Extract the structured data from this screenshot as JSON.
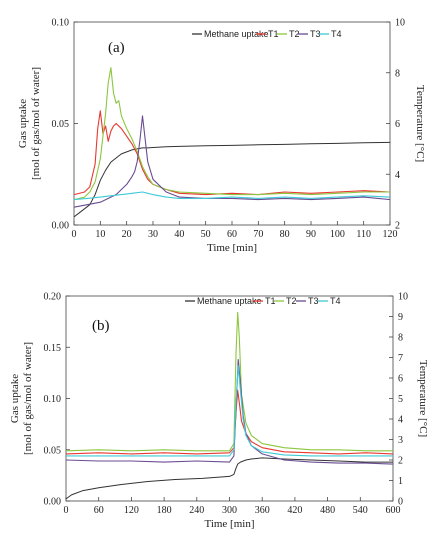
{
  "chart_data": [
    {
      "type": "line",
      "panel_label": "(a)",
      "xlabel": "Time  [min]",
      "ylabel_left_line1": "Gas uptake",
      "ylabel_left_line2": "[mol of gas/mol  of water]",
      "ylabel_right": "Temperature [°C]",
      "xlim": [
        0,
        120
      ],
      "xticks": [
        "0",
        "10",
        "20",
        "30",
        "40",
        "50",
        "60",
        "70",
        "80",
        "90",
        "100",
        "110",
        "120"
      ],
      "ylim_left": [
        0,
        0.1
      ],
      "yticks_left": [
        "0.00",
        "0.05",
        "0.10"
      ],
      "ylim_right": [
        2,
        10
      ],
      "yticks_right": [
        "2",
        "4",
        "6",
        "8",
        "10"
      ],
      "grid": false,
      "legend_position": "top-right",
      "series": [
        {
          "name": "Methane uptake",
          "axis": "left",
          "color": "#333333",
          "x": [
            0,
            2,
            4,
            6,
            8,
            10,
            12,
            14,
            16,
            18,
            20,
            22,
            24,
            26,
            28,
            30,
            35,
            40,
            50,
            60,
            70,
            80,
            90,
            100,
            110,
            120
          ],
          "y": [
            0.004,
            0.006,
            0.008,
            0.01,
            0.015,
            0.022,
            0.027,
            0.031,
            0.033,
            0.035,
            0.036,
            0.037,
            0.0375,
            0.038,
            0.038,
            0.0382,
            0.0385,
            0.0387,
            0.039,
            0.0392,
            0.0395,
            0.0397,
            0.04,
            0.0402,
            0.0405,
            0.0407
          ]
        },
        {
          "name": "T1",
          "axis": "right",
          "color": "#e8382f",
          "x": [
            0,
            4,
            6,
            8,
            9,
            10,
            11,
            12,
            13,
            14,
            15,
            16,
            18,
            20,
            22,
            24,
            26,
            28,
            30,
            35,
            40,
            50,
            60,
            70,
            80,
            90,
            100,
            110,
            120
          ],
          "y": [
            3.2,
            3.3,
            3.5,
            4.4,
            5.8,
            6.5,
            5.6,
            5.9,
            5.3,
            5.7,
            5.9,
            6.0,
            5.8,
            5.5,
            5.2,
            4.8,
            4.2,
            3.8,
            3.6,
            3.4,
            3.25,
            3.2,
            3.25,
            3.2,
            3.3,
            3.25,
            3.3,
            3.35,
            3.3
          ]
        },
        {
          "name": "T2",
          "axis": "right",
          "color": "#8cc63f",
          "x": [
            0,
            4,
            6,
            8,
            10,
            12,
            13,
            14,
            15,
            16,
            17,
            18,
            20,
            22,
            24,
            26,
            28,
            30,
            35,
            40,
            50,
            60,
            70,
            80,
            90,
            100,
            110,
            120
          ],
          "y": [
            3.0,
            3.1,
            3.3,
            3.7,
            4.6,
            6.4,
            7.6,
            8.2,
            7.2,
            6.8,
            6.9,
            6.3,
            5.8,
            5.4,
            4.9,
            4.3,
            3.9,
            3.6,
            3.4,
            3.3,
            3.25,
            3.2,
            3.2,
            3.25,
            3.2,
            3.25,
            3.3,
            3.3
          ]
        },
        {
          "name": "T3",
          "axis": "right",
          "color": "#6a4c93",
          "x": [
            0,
            5,
            10,
            14,
            16,
            18,
            20,
            22,
            23,
            24,
            25,
            26,
            27,
            28,
            30,
            35,
            40,
            50,
            60,
            70,
            80,
            90,
            100,
            110,
            120
          ],
          "y": [
            2.7,
            2.8,
            2.9,
            3.1,
            3.2,
            3.4,
            3.6,
            3.9,
            4.1,
            4.5,
            5.3,
            6.3,
            5.4,
            4.5,
            3.8,
            3.3,
            3.1,
            3.05,
            3.05,
            3.0,
            3.05,
            3.0,
            3.05,
            3.1,
            3.0
          ]
        },
        {
          "name": "T4",
          "axis": "right",
          "color": "#3ec9d6",
          "x": [
            0,
            5,
            10,
            14,
            18,
            22,
            26,
            28,
            30,
            35,
            40,
            50,
            60,
            70,
            80,
            90,
            100,
            110,
            120
          ],
          "y": [
            3.0,
            3.05,
            3.1,
            3.15,
            3.2,
            3.25,
            3.3,
            3.25,
            3.2,
            3.1,
            3.05,
            3.05,
            3.1,
            3.05,
            3.1,
            3.05,
            3.1,
            3.15,
            3.1
          ]
        }
      ]
    },
    {
      "type": "line",
      "panel_label": "(b)",
      "xlabel": "Time  [min]",
      "ylabel_left_line1": "Gas uptake",
      "ylabel_left_line2": "[mol of gas/mol of water]",
      "ylabel_right": "Temperature [°C]",
      "xlim": [
        0,
        600
      ],
      "xticks": [
        "0",
        "60",
        "120",
        "180",
        "240",
        "300",
        "360",
        "420",
        "480",
        "540",
        "600"
      ],
      "ylim_left": [
        0,
        0.2
      ],
      "yticks_left": [
        "0.00",
        "0.05",
        "0.10",
        "0.15",
        "0.20"
      ],
      "ylim_right": [
        0,
        10
      ],
      "yticks_right": [
        "0",
        "1",
        "2",
        "3",
        "4",
        "5",
        "6",
        "7",
        "8",
        "9",
        "10"
      ],
      "grid": false,
      "legend_position": "top-right",
      "series": [
        {
          "name": "Methane uptake",
          "axis": "left",
          "color": "#333333",
          "x": [
            0,
            10,
            30,
            60,
            100,
            150,
            200,
            250,
            300,
            308,
            312,
            315,
            320,
            330,
            340,
            360,
            400,
            450,
            500,
            550,
            600
          ],
          "y": [
            0.002,
            0.006,
            0.01,
            0.013,
            0.016,
            0.019,
            0.021,
            0.022,
            0.024,
            0.026,
            0.032,
            0.036,
            0.038,
            0.04,
            0.041,
            0.042,
            0.041,
            0.04,
            0.039,
            0.038,
            0.038
          ]
        },
        {
          "name": "T1",
          "axis": "right",
          "color": "#e8382f",
          "x": [
            0,
            60,
            120,
            180,
            240,
            300,
            308,
            312,
            315,
            318,
            322,
            330,
            340,
            360,
            400,
            450,
            500,
            550,
            600
          ],
          "y": [
            2.3,
            2.35,
            2.3,
            2.35,
            2.3,
            2.35,
            2.6,
            4.3,
            5.4,
            4.8,
            3.9,
            3.3,
            2.9,
            2.6,
            2.4,
            2.35,
            2.3,
            2.35,
            2.3
          ]
        },
        {
          "name": "T2",
          "axis": "right",
          "color": "#8cc63f",
          "x": [
            0,
            60,
            120,
            180,
            240,
            300,
            308,
            312,
            315,
            318,
            322,
            330,
            340,
            360,
            400,
            450,
            500,
            550,
            600
          ],
          "y": [
            2.45,
            2.5,
            2.45,
            2.5,
            2.45,
            2.45,
            2.8,
            7.2,
            9.2,
            8.0,
            5.2,
            3.8,
            3.2,
            2.8,
            2.6,
            2.5,
            2.5,
            2.45,
            2.45
          ]
        },
        {
          "name": "T3",
          "axis": "right",
          "color": "#6a4c93",
          "x": [
            0,
            60,
            120,
            180,
            240,
            300,
            308,
            312,
            316,
            320,
            325,
            330,
            340,
            360,
            400,
            450,
            500,
            550,
            600
          ],
          "y": [
            2.0,
            1.95,
            1.95,
            1.9,
            1.95,
            1.9,
            2.2,
            4.5,
            6.9,
            5.8,
            4.2,
            3.3,
            2.7,
            2.3,
            2.0,
            1.9,
            1.85,
            1.85,
            1.8
          ]
        },
        {
          "name": "T4",
          "axis": "right",
          "color": "#3ec9d6",
          "x": [
            0,
            60,
            120,
            180,
            240,
            300,
            308,
            312,
            316,
            320,
            325,
            330,
            340,
            360,
            400,
            450,
            500,
            550,
            600
          ],
          "y": [
            2.2,
            2.2,
            2.2,
            2.2,
            2.2,
            2.2,
            2.5,
            4.8,
            6.6,
            5.4,
            4.0,
            3.2,
            2.7,
            2.4,
            2.25,
            2.2,
            2.2,
            2.2,
            2.2
          ]
        }
      ]
    }
  ]
}
